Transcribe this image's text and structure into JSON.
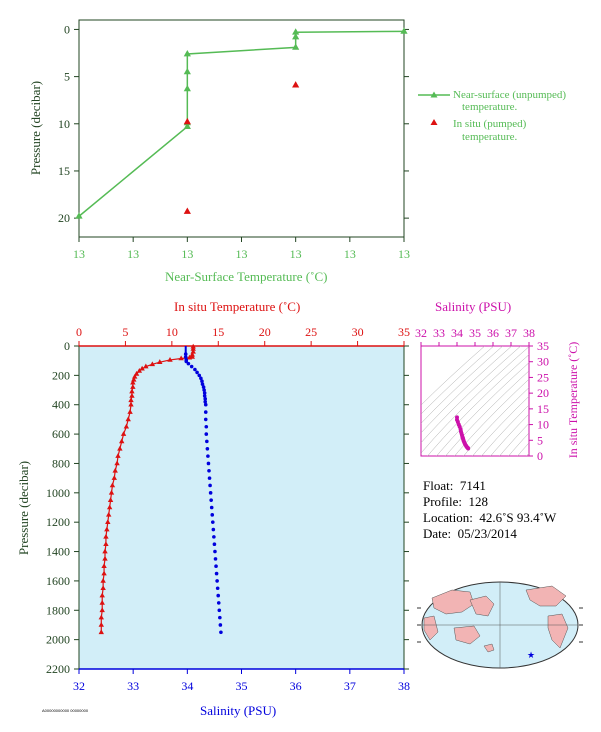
{
  "colors": {
    "surface": "#55bb55",
    "temperature": "#dd1111",
    "salinity": "#0000dd",
    "ts": "#cc11aa",
    "axis_dark": "#224422",
    "panel_bg": "#d2eef8",
    "land": "#f2b4b4"
  },
  "chart_data": [
    {
      "type": "line",
      "name": "near-surface",
      "xlabel": "Near-Surface Temperature (˚C)",
      "ylabel": "Pressure (decibar)",
      "x_tick_labels": [
        "13",
        "13",
        "13",
        "13",
        "13",
        "13",
        "13"
      ],
      "y_ticks": [
        0,
        5,
        10,
        15,
        20
      ],
      "y_tick_labels": [
        "0",
        "5",
        "10",
        "15",
        "20"
      ],
      "ylim": [
        22,
        -1
      ],
      "series": [
        {
          "name": "Near-surface (unpumped) temperature.",
          "marker": "triangle",
          "points": [
            {
              "t": 0,
              "p": 19.8
            },
            {
              "t": 2,
              "p": 10.3
            },
            {
              "t": 2,
              "p": 9.9
            },
            {
              "t": 2,
              "p": 6.3
            },
            {
              "t": 2,
              "p": 4.5
            },
            {
              "t": 2,
              "p": 2.6
            },
            {
              "t": 4,
              "p": 1.9
            },
            {
              "t": 4,
              "p": 0.8
            },
            {
              "t": 4,
              "p": 0.3
            },
            {
              "t": 6,
              "p": 0.2
            }
          ]
        },
        {
          "name": "In situ (pumped) temperature.",
          "marker": "triangle",
          "points": [
            {
              "t": 2,
              "p": 19.3
            },
            {
              "t": 2,
              "p": 9.8
            },
            {
              "t": 4,
              "p": 5.9
            }
          ]
        }
      ],
      "legend": [
        "Near-surface (unpumped)",
        "temperature.",
        "In situ (pumped)",
        "temperature."
      ]
    },
    {
      "type": "line",
      "name": "profile",
      "ylabel": "Pressure (decibar)",
      "ylim": [
        2200,
        0
      ],
      "y_ticks": [
        0,
        200,
        400,
        600,
        800,
        1000,
        1200,
        1400,
        1600,
        1800,
        2000,
        2200
      ],
      "y_tick_labels": [
        "0",
        "200",
        "400",
        "600",
        "800",
        "1000",
        "1200",
        "1400",
        "1600",
        "1800",
        "2000",
        "2200"
      ],
      "temp_axis": {
        "label": "In situ Temperature (˚C)",
        "range": [
          0,
          35
        ],
        "ticks": [
          0,
          5,
          10,
          15,
          20,
          25,
          30,
          35
        ],
        "tick_labels": [
          "0",
          "5",
          "10",
          "15",
          "20",
          "25",
          "30",
          "35"
        ]
      },
      "sal_axis": {
        "label": "Salinity (PSU)",
        "range": [
          32,
          38
        ],
        "ticks": [
          32,
          33,
          34,
          35,
          36,
          37,
          38
        ],
        "tick_labels": [
          "32",
          "33",
          "34",
          "35",
          "36",
          "37",
          "38"
        ]
      },
      "series": [
        {
          "name": "temperature",
          "marker": "triangle",
          "points": [
            [
              12.3,
              5
            ],
            [
              12.3,
              20
            ],
            [
              12.3,
              40
            ],
            [
              12.2,
              60
            ],
            [
              12.2,
              75
            ],
            [
              11.9,
              80
            ],
            [
              11.0,
              85
            ],
            [
              9.8,
              95
            ],
            [
              8.7,
              110
            ],
            [
              7.9,
              125
            ],
            [
              7.2,
              140
            ],
            [
              6.8,
              155
            ],
            [
              6.5,
              170
            ],
            [
              6.2,
              190
            ],
            [
              6.0,
              210
            ],
            [
              5.9,
              230
            ],
            [
              5.8,
              250
            ],
            [
              5.8,
              280
            ],
            [
              5.7,
              310
            ],
            [
              5.7,
              340
            ],
            [
              5.6,
              370
            ],
            [
              5.6,
              400
            ],
            [
              5.5,
              450
            ],
            [
              5.3,
              500
            ],
            [
              5.1,
              550
            ],
            [
              4.8,
              600
            ],
            [
              4.6,
              650
            ],
            [
              4.4,
              700
            ],
            [
              4.2,
              750
            ],
            [
              4.1,
              800
            ],
            [
              3.9,
              850
            ],
            [
              3.8,
              900
            ],
            [
              3.6,
              950
            ],
            [
              3.5,
              1000
            ],
            [
              3.4,
              1050
            ],
            [
              3.3,
              1100
            ],
            [
              3.2,
              1150
            ],
            [
              3.1,
              1200
            ],
            [
              3.0,
              1250
            ],
            [
              2.9,
              1300
            ],
            [
              2.9,
              1350
            ],
            [
              2.8,
              1400
            ],
            [
              2.8,
              1450
            ],
            [
              2.7,
              1500
            ],
            [
              2.7,
              1550
            ],
            [
              2.6,
              1600
            ],
            [
              2.6,
              1650
            ],
            [
              2.5,
              1700
            ],
            [
              2.5,
              1750
            ],
            [
              2.5,
              1800
            ],
            [
              2.4,
              1850
            ],
            [
              2.4,
              1900
            ],
            [
              2.4,
              1950
            ]
          ]
        },
        {
          "name": "salinity",
          "marker": "dot",
          "points": [
            [
              33.97,
              55
            ],
            [
              33.97,
              75
            ],
            [
              33.98,
              95
            ],
            [
              33.98,
              105
            ],
            [
              34.02,
              120
            ],
            [
              34.08,
              140
            ],
            [
              34.14,
              160
            ],
            [
              34.18,
              180
            ],
            [
              34.22,
              200
            ],
            [
              34.25,
              220
            ],
            [
              34.27,
              240
            ],
            [
              34.28,
              260
            ],
            [
              34.3,
              280
            ],
            [
              34.31,
              300
            ],
            [
              34.32,
              320
            ],
            [
              34.32,
              340
            ],
            [
              34.33,
              360
            ],
            [
              34.33,
              380
            ],
            [
              34.34,
              400
            ],
            [
              34.34,
              450
            ],
            [
              34.34,
              500
            ],
            [
              34.35,
              550
            ],
            [
              34.35,
              600
            ],
            [
              34.36,
              650
            ],
            [
              34.37,
              700
            ],
            [
              34.38,
              750
            ],
            [
              34.39,
              800
            ],
            [
              34.4,
              850
            ],
            [
              34.41,
              900
            ],
            [
              34.42,
              950
            ],
            [
              34.43,
              1000
            ],
            [
              34.44,
              1050
            ],
            [
              34.45,
              1100
            ],
            [
              34.46,
              1150
            ],
            [
              34.47,
              1200
            ],
            [
              34.48,
              1250
            ],
            [
              34.49,
              1300
            ],
            [
              34.5,
              1350
            ],
            [
              34.51,
              1400
            ],
            [
              34.52,
              1450
            ],
            [
              34.53,
              1500
            ],
            [
              34.54,
              1550
            ],
            [
              34.55,
              1600
            ],
            [
              34.56,
              1650
            ],
            [
              34.57,
              1700
            ],
            [
              34.58,
              1750
            ],
            [
              34.59,
              1800
            ],
            [
              34.6,
              1850
            ],
            [
              34.61,
              1900
            ],
            [
              34.62,
              1950
            ]
          ]
        }
      ]
    },
    {
      "type": "scatter",
      "name": "ts-diagram",
      "xlabel": "Salinity (PSU)",
      "ylabel": "In situ Temperature (˚C)",
      "xlim": [
        32,
        38
      ],
      "ylim": [
        0,
        35
      ],
      "x_ticks": [
        32,
        33,
        34,
        35,
        36,
        37,
        38
      ],
      "x_tick_labels": [
        "32",
        "33",
        "34",
        "35",
        "36",
        "37",
        "38"
      ],
      "y_ticks": [
        0,
        5,
        10,
        15,
        20,
        25,
        30,
        35
      ],
      "y_tick_labels": [
        "0",
        "5",
        "10",
        "15",
        "20",
        "25",
        "30",
        "35"
      ],
      "points": [
        [
          34.0,
          12.3
        ],
        [
          34.0,
          11.5
        ],
        [
          34.05,
          10.8
        ],
        [
          34.1,
          10.0
        ],
        [
          34.15,
          9.3
        ],
        [
          34.2,
          8.5
        ],
        [
          34.22,
          7.8
        ],
        [
          34.25,
          7.2
        ],
        [
          34.28,
          6.6
        ],
        [
          34.3,
          6.1
        ],
        [
          34.32,
          5.8
        ],
        [
          34.33,
          5.6
        ],
        [
          34.35,
          5.2
        ],
        [
          34.37,
          4.8
        ],
        [
          34.4,
          4.4
        ],
        [
          34.43,
          4.0
        ],
        [
          34.46,
          3.6
        ],
        [
          34.5,
          3.3
        ],
        [
          34.53,
          3.0
        ],
        [
          34.56,
          2.8
        ],
        [
          34.6,
          2.6
        ],
        [
          34.62,
          2.4
        ]
      ]
    }
  ],
  "info": {
    "float_label": "Float:",
    "float_value": "7141",
    "profile_label": "Profile:",
    "profile_value": "128",
    "location_label": "Location:",
    "location_value": "42.6˚S  93.4˚W",
    "date_label": "Date:",
    "date_value": "05/23/2014"
  },
  "map": {
    "marker_icon": "star-icon",
    "float_position": {
      "lat": -42.6,
      "lon": -93.4
    }
  },
  "footer_stamp": "A00000000000 00000000"
}
